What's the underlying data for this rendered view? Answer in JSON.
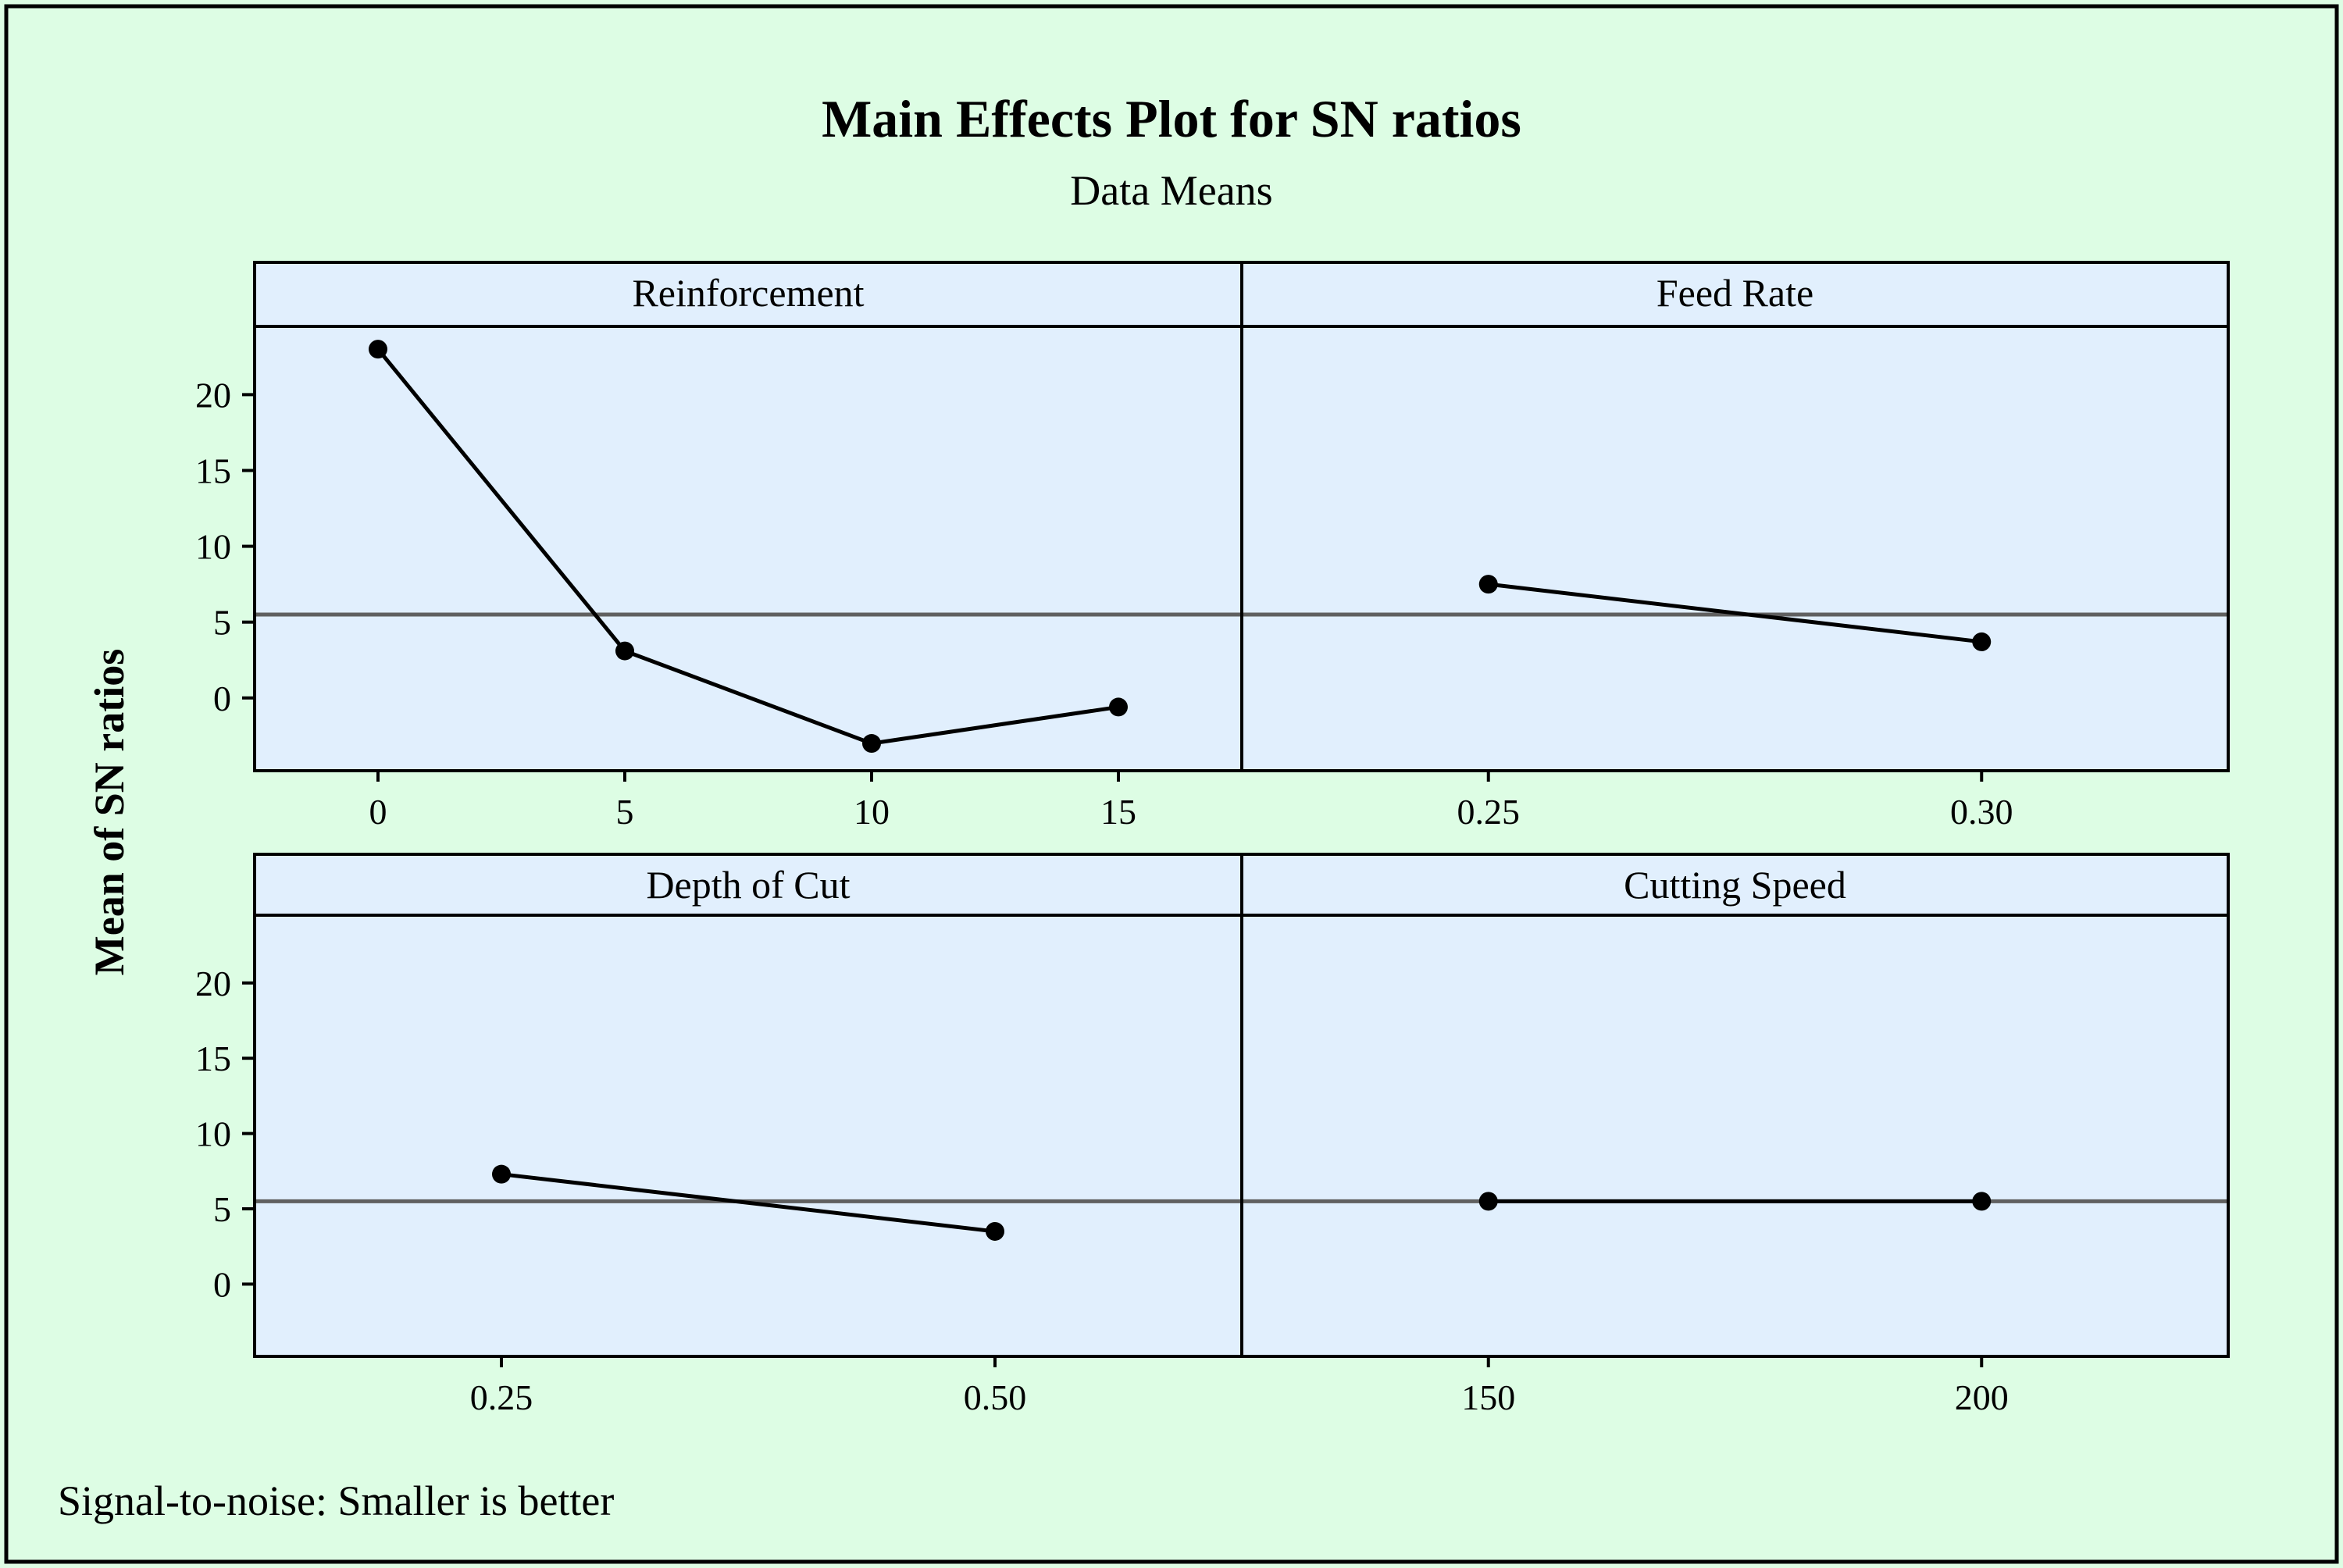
{
  "chart_data": {
    "type": "line",
    "title": "Main Effects Plot for SN ratios",
    "subtitle": "Data Means",
    "ylabel": "Mean of SN ratios",
    "footnote": "Signal-to-noise: Smaller is better",
    "ylim": [
      -4.8,
      24.5
    ],
    "yticks": [
      0,
      5,
      10,
      15,
      20
    ],
    "ytick_labels": [
      "0",
      "5",
      "10",
      "15",
      "20"
    ],
    "reference_line": 5.5,
    "colors": {
      "page_background": "#ddfde4",
      "panel_background": "#e1effd",
      "line": "#000000",
      "reference_line": "#606060"
    },
    "panels": [
      {
        "factor": "Reinforcement",
        "position": "top-left",
        "categories": [
          "0",
          "5",
          "10",
          "15"
        ],
        "values": [
          23.0,
          3.1,
          -3.0,
          -0.6
        ]
      },
      {
        "factor": "Feed Rate",
        "position": "top-right",
        "categories": [
          "0.25",
          "0.30"
        ],
        "values": [
          7.5,
          3.7
        ]
      },
      {
        "factor": "Depth of Cut",
        "position": "bottom-left",
        "categories": [
          "0.25",
          "0.50"
        ],
        "values": [
          7.3,
          3.5
        ]
      },
      {
        "factor": "Cutting Speed",
        "position": "bottom-right",
        "categories": [
          "150",
          "200"
        ],
        "values": [
          5.5,
          5.5
        ]
      }
    ]
  }
}
